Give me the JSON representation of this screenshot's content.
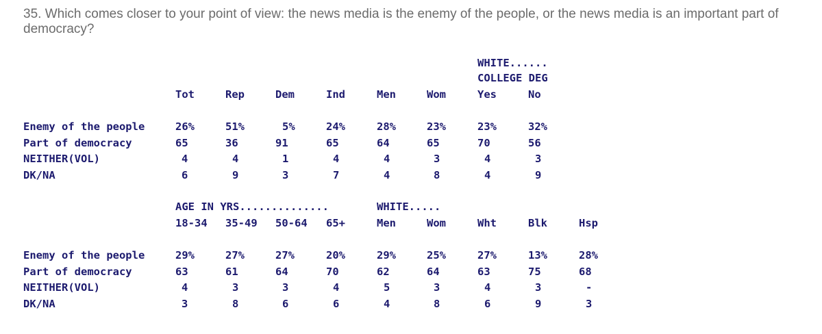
{
  "question": "35. Which comes closer to your point of view: the news media is the enemy of the people, or the news media is an important part of democracy?",
  "table1": {
    "group_line1": "WHITE......",
    "group_line2": "COLLEGE DEG",
    "columns": [
      "Tot",
      "Rep",
      "Dem",
      "Ind",
      "Men",
      "Wom",
      "Yes",
      "No"
    ],
    "rows": [
      {
        "label": "Enemy of the people",
        "values": [
          "26%",
          "51%",
          "5%",
          "24%",
          "28%",
          "23%",
          "23%",
          "32%"
        ]
      },
      {
        "label": "Part of democracy",
        "values": [
          "65",
          "36",
          "91",
          "65",
          "64",
          "65",
          "70",
          "56"
        ]
      },
      {
        "label": "NEITHER(VOL)",
        "values": [
          "4",
          "4",
          "1",
          "4",
          "4",
          "3",
          "4",
          "3"
        ]
      },
      {
        "label": "DK/NA",
        "values": [
          "6",
          "9",
          "3",
          "7",
          "4",
          "8",
          "4",
          "9"
        ]
      }
    ]
  },
  "table2": {
    "group_age": "AGE IN YRS..............",
    "group_white": "WHITE.....",
    "columns": [
      "18-34",
      "35-49",
      "50-64",
      "65+",
      "Men",
      "Wom",
      "Wht",
      "Blk",
      "Hsp"
    ],
    "rows": [
      {
        "label": "Enemy of the people",
        "values": [
          "29%",
          "27%",
          "27%",
          "20%",
          "29%",
          "25%",
          "27%",
          "13%",
          "28%"
        ]
      },
      {
        "label": "Part of democracy",
        "values": [
          "63",
          "61",
          "64",
          "70",
          "62",
          "64",
          "63",
          "75",
          "68"
        ]
      },
      {
        "label": "NEITHER(VOL)",
        "values": [
          "4",
          "3",
          "3",
          "4",
          "5",
          "3",
          "4",
          "3",
          "-"
        ]
      },
      {
        "label": "DK/NA",
        "values": [
          "3",
          "8",
          "6",
          "6",
          "4",
          "8",
          "6",
          "9",
          "3"
        ]
      }
    ]
  }
}
